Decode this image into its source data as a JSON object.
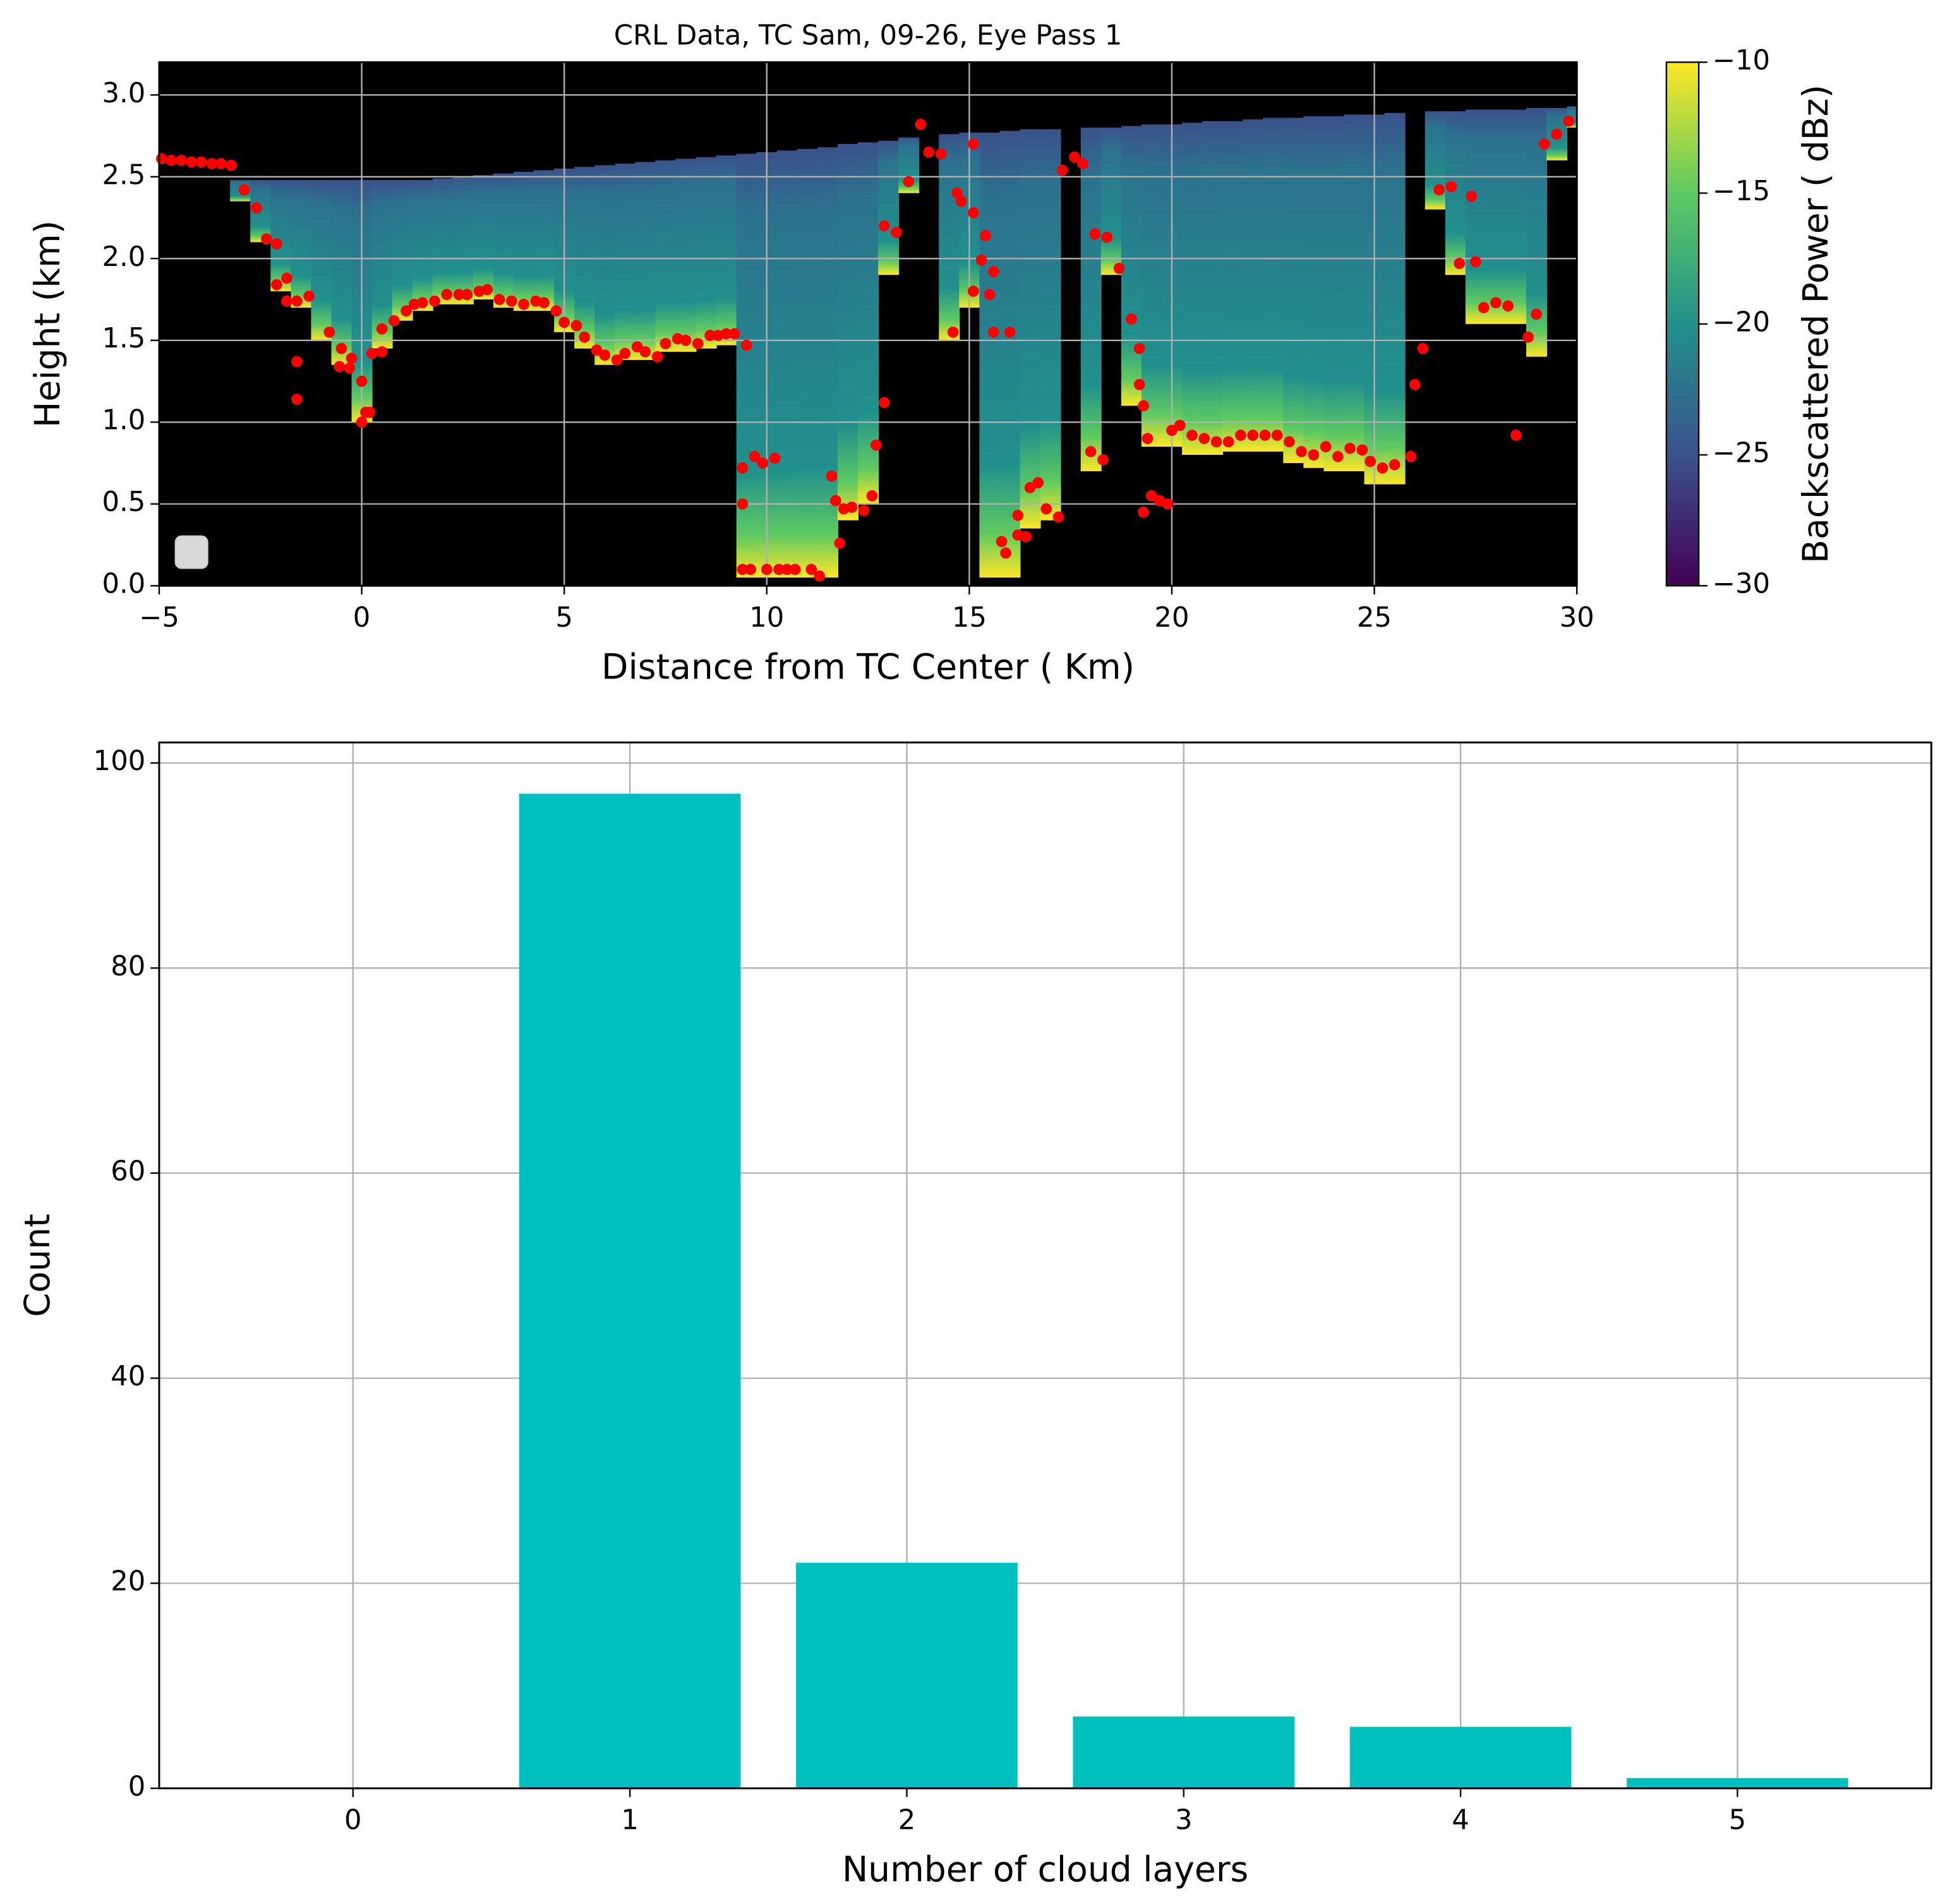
{
  "chart_data": [
    {
      "type": "curtain",
      "title": "CRL Data, TC Sam, 09-26, Eye Pass 1",
      "x_label": "Distance from TC Center ( Km)",
      "y_label": "Height (km)",
      "xlim": [
        -5,
        30
      ],
      "xticks": [
        {
          "value": -5,
          "label": "−5"
        },
        0,
        5,
        10,
        15,
        20,
        25,
        30
      ],
      "ylim": [
        0,
        3.2
      ],
      "yticks": [
        {
          "value": 0,
          "label": "0.0"
        },
        0.5,
        {
          "value": 1,
          "label": "1.0"
        },
        1.5,
        {
          "value": 2,
          "label": "2.0"
        },
        2.5,
        {
          "value": 3,
          "label": "3.0"
        }
      ],
      "grid": true,
      "columns": {
        "x": [
          -3,
          -2.5,
          -2,
          -1.5,
          -1,
          -0.5,
          0,
          0.5,
          1,
          1.5,
          2,
          2.5,
          3,
          3.5,
          4,
          4.5,
          5,
          5.5,
          6,
          6.5,
          7,
          7.5,
          8,
          8.5,
          9,
          9.5,
          10,
          10.5,
          11,
          11.5,
          12,
          12.5,
          13,
          13.5,
          14,
          14.5,
          15,
          15.5,
          16,
          16.5,
          17,
          17.5,
          18,
          18.5,
          19,
          19.5,
          20,
          20.5,
          21,
          21.5,
          22,
          22.5,
          23,
          23.5,
          24,
          24.5,
          25,
          25.5,
          26,
          26.5,
          27,
          27.5,
          28,
          28.5,
          29,
          29.5,
          30
        ],
        "top": [
          2.48,
          2.48,
          2.48,
          2.48,
          2.48,
          2.48,
          2.48,
          2.48,
          2.48,
          2.48,
          2.49,
          2.5,
          2.51,
          2.52,
          2.53,
          2.54,
          2.55,
          2.56,
          2.57,
          2.58,
          2.59,
          2.6,
          2.61,
          2.62,
          2.63,
          2.64,
          2.65,
          2.66,
          2.67,
          2.68,
          2.7,
          2.71,
          2.72,
          2.74,
          null,
          2.76,
          2.77,
          2.77,
          2.78,
          2.79,
          2.79,
          null,
          2.8,
          2.8,
          2.81,
          2.82,
          2.82,
          2.83,
          2.84,
          2.84,
          2.85,
          2.86,
          2.86,
          2.87,
          2.87,
          2.88,
          2.88,
          2.89,
          null,
          2.9,
          2.9,
          2.91,
          2.91,
          2.91,
          2.92,
          2.92,
          2.93
        ],
        "base": [
          2.35,
          2.1,
          1.8,
          1.7,
          1.5,
          1.35,
          1.0,
          1.45,
          1.62,
          1.68,
          1.72,
          1.72,
          1.75,
          1.7,
          1.68,
          1.68,
          1.55,
          1.45,
          1.35,
          1.38,
          1.38,
          1.43,
          1.43,
          1.45,
          1.47,
          0.05,
          0.05,
          0.05,
          0.05,
          0.05,
          0.4,
          0.5,
          1.9,
          2.4,
          null,
          1.5,
          1.7,
          0.05,
          0.05,
          0.35,
          0.4,
          null,
          0.7,
          1.9,
          1.1,
          0.85,
          0.85,
          0.8,
          0.8,
          0.82,
          0.82,
          0.82,
          0.75,
          0.72,
          0.7,
          0.7,
          0.62,
          0.62,
          null,
          2.3,
          1.9,
          1.6,
          1.6,
          1.6,
          1.4,
          2.6,
          2.8
        ]
      },
      "points": {
        "color": "#ff0000",
        "x": [
          -4.94,
          -4.7,
          -4.45,
          -4.2,
          -3.96,
          -3.7,
          -3.47,
          -3.22,
          -2.9,
          -2.6,
          -2.35,
          -2.1,
          -2.1,
          -1.85,
          -1.85,
          -1.6,
          -1.6,
          -1.6,
          -1.3,
          -0.8,
          -0.5,
          -0.55,
          -0.25,
          -0.3,
          0,
          0,
          0.1,
          0.2,
          0.25,
          0.5,
          0.5,
          0.8,
          1.1,
          1.3,
          1.5,
          1.8,
          2.1,
          2.4,
          2.6,
          2.9,
          3.1,
          3.4,
          3.7,
          4,
          4.3,
          4.5,
          4.8,
          5,
          5.3,
          5.5,
          5.8,
          6,
          6.3,
          6.5,
          6.8,
          7,
          7.3,
          7.5,
          7.8,
          8,
          8.3,
          8.6,
          8.8,
          9,
          9.2,
          9.5,
          9.4,
          9.4,
          9.4,
          9.6,
          9.7,
          9.9,
          10,
          10.2,
          10.3,
          10.5,
          10.7,
          11.1,
          11.3,
          11.6,
          11.7,
          11.8,
          11.9,
          12.1,
          12.4,
          12.6,
          12.7,
          12.9,
          12.9,
          13.2,
          13.5,
          13.8,
          14,
          14.3,
          14.6,
          14.7,
          14.8,
          15.1,
          15.1,
          15.1,
          15.3,
          15.4,
          15.5,
          15.6,
          15.6,
          15.8,
          15.9,
          16,
          16.2,
          16.2,
          16.4,
          16.5,
          16.7,
          16.9,
          17.2,
          17.3,
          17.6,
          17.8,
          18,
          18.3,
          18.1,
          18.4,
          18.7,
          19,
          19.2,
          19.2,
          19.3,
          19.4,
          19.3,
          19.5,
          19.7,
          19.9,
          20,
          20.2,
          20.5,
          20.8,
          21.1,
          21.4,
          21.7,
          22,
          22.3,
          22.6,
          22.9,
          23.2,
          23.5,
          23.8,
          24.1,
          24.4,
          24.7,
          24.9,
          25.2,
          25.5,
          25.9,
          26,
          26.2,
          26.6,
          26.9,
          27.1,
          27.4,
          27.5,
          27.7,
          28,
          28.3,
          28.5,
          28.8,
          29,
          29.2,
          29.5,
          29.8
        ],
        "y": [
          2.61,
          2.6,
          2.6,
          2.59,
          2.59,
          2.58,
          2.58,
          2.57,
          2.42,
          2.31,
          2.12,
          2.09,
          1.84,
          1.88,
          1.74,
          1.74,
          1.37,
          1.14,
          1.77,
          1.55,
          1.45,
          1.34,
          1.39,
          1.33,
          1.25,
          1.0,
          1.06,
          1.06,
          1.42,
          1.43,
          1.57,
          1.62,
          1.68,
          1.72,
          1.73,
          1.74,
          1.78,
          1.78,
          1.78,
          1.8,
          1.81,
          1.75,
          1.74,
          1.72,
          1.74,
          1.73,
          1.68,
          1.61,
          1.59,
          1.52,
          1.44,
          1.41,
          1.38,
          1.42,
          1.46,
          1.43,
          1.4,
          1.48,
          1.51,
          1.5,
          1.48,
          1.53,
          1.53,
          1.54,
          1.54,
          1.47,
          0.72,
          0.5,
          0.1,
          0.1,
          0.79,
          0.75,
          0.1,
          0.78,
          0.1,
          0.1,
          0.1,
          0.1,
          0.06,
          0.67,
          0.52,
          0.26,
          0.47,
          0.48,
          0.46,
          0.55,
          0.86,
          1.12,
          2.2,
          2.16,
          2.47,
          2.82,
          2.65,
          2.64,
          1.55,
          2.4,
          2.35,
          2.7,
          2.28,
          1.8,
          1.99,
          2.14,
          1.78,
          1.92,
          1.55,
          0.27,
          0.2,
          1.55,
          0.43,
          0.31,
          0.3,
          0.6,
          0.63,
          0.47,
          0.42,
          2.54,
          2.62,
          2.58,
          0.82,
          0.77,
          2.15,
          2.13,
          1.94,
          1.63,
          1.45,
          1.23,
          1.1,
          0.9,
          0.45,
          0.55,
          0.52,
          0.5,
          0.95,
          0.98,
          0.92,
          0.9,
          0.88,
          0.88,
          0.92,
          0.92,
          0.92,
          0.92,
          0.88,
          0.82,
          0.8,
          0.85,
          0.79,
          0.84,
          0.83,
          0.76,
          0.72,
          0.74,
          0.79,
          1.23,
          1.45,
          2.42,
          2.44,
          1.97,
          2.38,
          1.98,
          1.7,
          1.73,
          1.71,
          0.92,
          1.52,
          1.66,
          2.7,
          2.76,
          2.84
        ]
      },
      "colorbar": {
        "label": "Backscattered Power ( dBz)",
        "lim": [
          -30,
          -10
        ],
        "ticks": [
          {
            "value": -30,
            "label": "−30"
          },
          {
            "value": -25,
            "label": "−25"
          },
          {
            "value": -20,
            "label": "−20"
          },
          {
            "value": -15,
            "label": "−15"
          },
          {
            "value": -10,
            "label": "−10"
          }
        ]
      }
    },
    {
      "type": "bar",
      "x_label": "Number of cloud layers",
      "y_label": "Count",
      "categories": [
        0,
        1,
        2,
        3,
        4,
        5
      ],
      "values": [
        0,
        97,
        22,
        7,
        6,
        1
      ],
      "color": "#00bfbf",
      "xlim": [
        -0.7,
        5.7
      ],
      "ylim": [
        0,
        102
      ],
      "yticks": [
        0,
        20,
        40,
        60,
        80,
        100
      ],
      "grid": true
    }
  ]
}
